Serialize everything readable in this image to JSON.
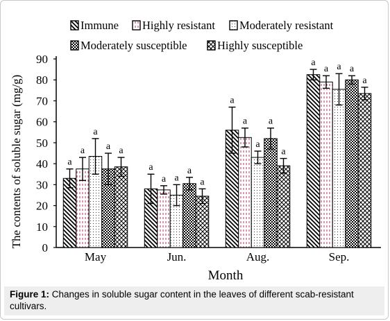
{
  "caption": {
    "label": "Figure 1:",
    "text": " Changes in soluble sugar content in the leaves of different scab-resistant cultivars."
  },
  "chart_data": {
    "type": "bar",
    "xlabel": "Month",
    "ylabel": "The contents of soluble sugar (mg/g)",
    "ylim": [
      0,
      90
    ],
    "yticks": [
      0,
      10,
      20,
      30,
      40,
      50,
      60,
      70,
      80,
      90
    ],
    "categories": [
      "May",
      "Jun.",
      "Aug.",
      "Sep."
    ],
    "legend_position": "top",
    "series": [
      {
        "name": "Immune",
        "pattern": "diagonal-right",
        "values": [
          33,
          28,
          56,
          82.5
        ],
        "errors": [
          4.5,
          7,
          11,
          2.5
        ],
        "labels": [
          "a",
          "a",
          "a",
          "a"
        ]
      },
      {
        "name": "Highly resistant",
        "pattern": "dashed-vertical",
        "values": [
          37.5,
          27.5,
          52.5,
          79
        ],
        "errors": [
          5.5,
          2,
          4.5,
          3
        ],
        "labels": [
          "a",
          "a",
          "a",
          "a"
        ]
      },
      {
        "name": "Moderately resistant",
        "pattern": "fine-dots",
        "values": [
          43.5,
          25,
          43,
          75.5
        ],
        "errors": [
          8.5,
          5,
          3,
          7.5
        ],
        "labels": [
          "a",
          "a",
          "a",
          "a"
        ]
      },
      {
        "name": "Moderately susceptible",
        "pattern": "dense-dots",
        "values": [
          37.5,
          30.5,
          52,
          80
        ],
        "errors": [
          7.5,
          3,
          5,
          2
        ],
        "labels": [
          "a",
          "a",
          "a",
          "a"
        ]
      },
      {
        "name": "Highly susceptible",
        "pattern": "cross-hatch",
        "values": [
          38.5,
          24.5,
          39,
          73.5
        ],
        "errors": [
          4.5,
          3.5,
          3.5,
          3
        ],
        "labels": [
          "a",
          "a",
          "a",
          "a"
        ]
      }
    ]
  }
}
